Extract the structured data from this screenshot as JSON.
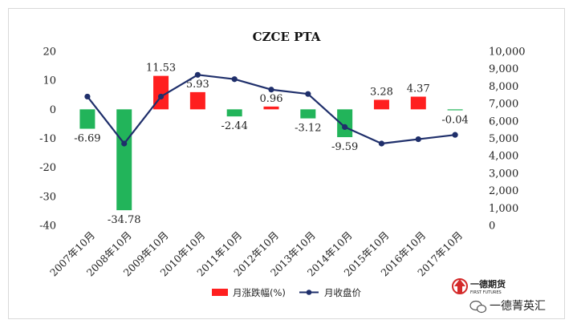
{
  "chart_data": {
    "type": "bar+line",
    "title": "CZCE PTA",
    "categories": [
      "2007年10月",
      "2008年10月",
      "2009年10月",
      "2010年10月",
      "2011年10月",
      "2012年10月",
      "2013年10月",
      "2014年10月",
      "2015年10月",
      "2016年10月",
      "2017年10月"
    ],
    "series": [
      {
        "name": "月涨跌幅(%)",
        "kind": "bar",
        "axis": "left",
        "values": [
          -6.69,
          -34.78,
          11.53,
          5.93,
          -2.44,
          0.96,
          -3.12,
          -9.59,
          3.28,
          4.37,
          -0.04
        ],
        "labels": [
          "-6.69",
          "-34.78",
          "11.53",
          "5.93",
          "-2.44",
          "0.96",
          "-3.12",
          "-9.59",
          "3.28",
          "4.37",
          "-0.04"
        ]
      },
      {
        "name": "月收盘价",
        "kind": "line",
        "axis": "right",
        "values": [
          7400,
          4700,
          7400,
          8650,
          8400,
          7800,
          7550,
          5650,
          4700,
          4950,
          5200
        ]
      }
    ],
    "y_left": {
      "min": -40,
      "max": 20,
      "step": 10,
      "ticks": [
        "20",
        "10",
        "0",
        "-10",
        "-20",
        "-30",
        "-40"
      ]
    },
    "y_right": {
      "min": 0,
      "max": 10000,
      "step": 1000,
      "ticks": [
        "10,000",
        "9,000",
        "8,000",
        "7,000",
        "6,000",
        "5,000",
        "4,000",
        "3,000",
        "2,000",
        "1,000",
        "0"
      ]
    },
    "colors": {
      "positive": "#ff1f1f",
      "negative": "#22b45a",
      "line": "#1f2f6b"
    },
    "legend_position": "bottom-center",
    "grid": false
  },
  "watermark": {
    "logo_text": "一德期货",
    "logo_sub": "FIRST FUTURES",
    "account": "一德菁英汇"
  }
}
